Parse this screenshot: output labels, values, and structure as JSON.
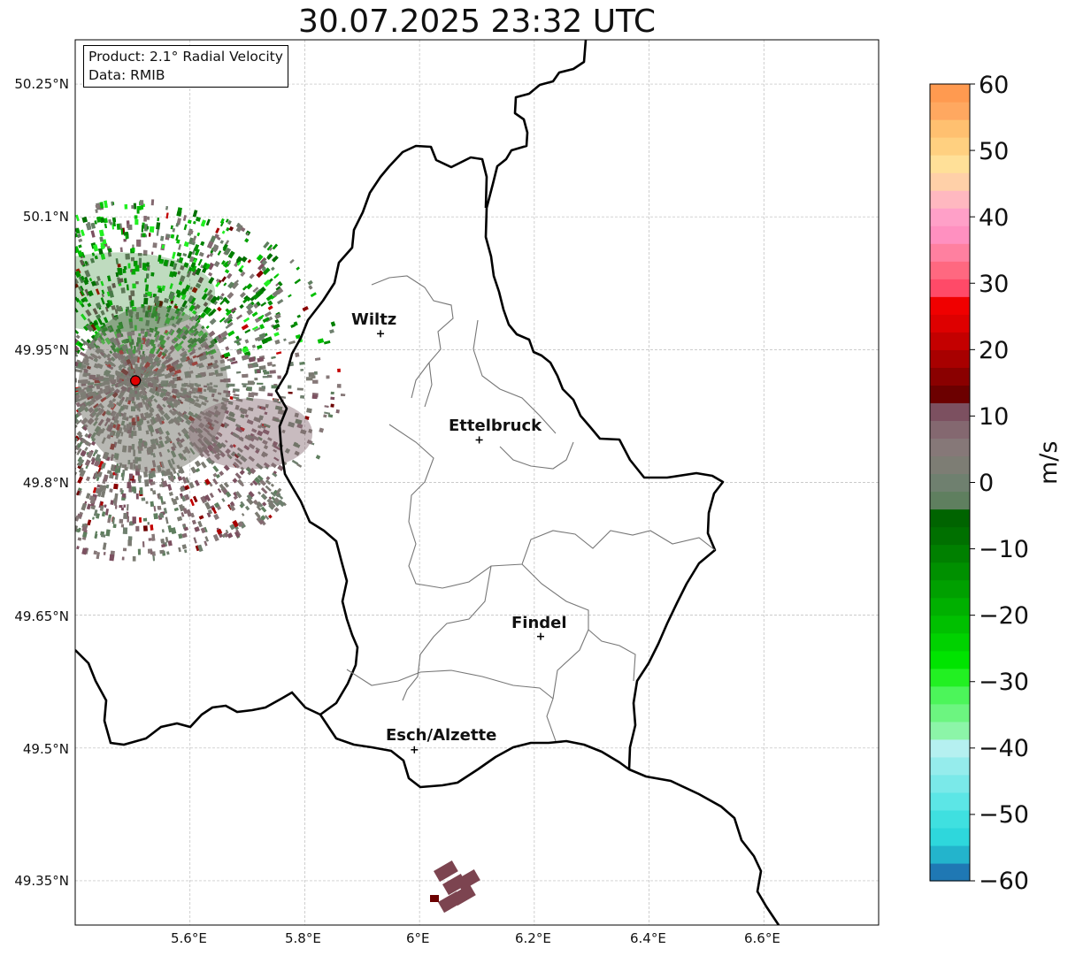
{
  "title": "30.07.2025 23:32 UTC",
  "info": {
    "product": "Product: 2.1° Radial Velocity",
    "data": "Data: RMIB"
  },
  "lat_labels": [
    "50.25°N",
    "50.1°N",
    "49.95°N",
    "49.8°N",
    "49.65°N",
    "49.5°N",
    "49.35°N"
  ],
  "lon_labels": [
    "5.6°E",
    "5.8°E",
    "6°E",
    "6.2°E",
    "6.4°E",
    "6.6°E"
  ],
  "cities": [
    {
      "name": "Wiltz",
      "lat": 49.968,
      "lon": 5.932
    },
    {
      "name": "Ettelbruck",
      "lat": 49.848,
      "lon": 6.104
    },
    {
      "name": "Findel",
      "lat": 49.626,
      "lon": 6.211
    },
    {
      "name": "Esch/Alzette",
      "lat": 49.498,
      "lon": 5.991
    }
  ],
  "radar_site": {
    "lat": 49.915,
    "lon": 5.505
  },
  "colorbar": {
    "label": "m/s",
    "ticks": [
      "60",
      "50",
      "40",
      "30",
      "20",
      "10",
      "0",
      "−10",
      "−20",
      "−30",
      "−40",
      "−50",
      "−60"
    ],
    "colors": [
      "#1f78b4",
      "#23b4cc",
      "#2ed7dc",
      "#3fe0e0",
      "#5ce6e6",
      "#7ae9e9",
      "#95ecec",
      "#b5f0f0",
      "#8cf5a8",
      "#6cf580",
      "#4cf55a",
      "#22f022",
      "#00e400",
      "#00d200",
      "#00c000",
      "#00b000",
      "#00a000",
      "#009000",
      "#008000",
      "#007000",
      "#006400",
      "#5f7f5f",
      "#6f806f",
      "#7d7d74",
      "#867878",
      "#846870",
      "#7c5060",
      "#6c0000",
      "#8a0000",
      "#a80000",
      "#c40000",
      "#de0000",
      "#f00000",
      "#ff4a68",
      "#ff6880",
      "#ff80a0",
      "#ff90c0",
      "#ffa0c8",
      "#ffb8c0",
      "#ffd0a8",
      "#ffe098",
      "#ffd080",
      "#ffc070",
      "#ffa860",
      "#ff9a50"
    ],
    "min": -60,
    "max": 60
  },
  "map_extent": {
    "lon": [
      5.4,
      6.8
    ],
    "lat": [
      49.3,
      50.3
    ]
  },
  "colors": {
    "border": "#000000",
    "cantons": "#777777",
    "grid": "#bbbbbb"
  }
}
